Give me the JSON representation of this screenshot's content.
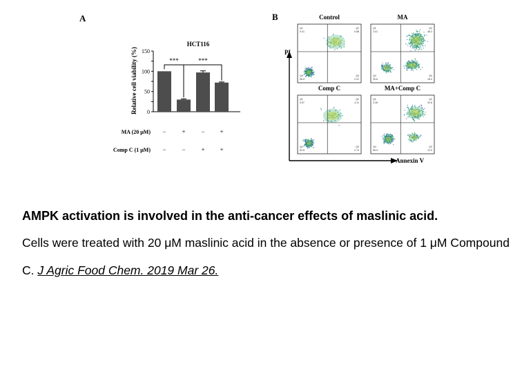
{
  "panel_a": {
    "label": "A",
    "chart_data": {
      "type": "bar",
      "title": "HCT116",
      "ylabel": "Relative cell viability (%)",
      "ylim": [
        0,
        150
      ],
      "yticks": [
        "0",
        "25",
        "50",
        "75",
        "100",
        "125",
        "150"
      ],
      "categories": [
        "MA−/CompC−",
        "MA+/CompC−",
        "MA−/CompC+",
        "MA+/CompC+"
      ],
      "values": [
        100,
        30,
        97,
        72
      ],
      "errors": [
        0,
        1.5,
        4,
        1.5
      ],
      "significance": [
        "***",
        "***"
      ],
      "rows": [
        {
          "label": "MA (20 μM)",
          "signs": [
            "−",
            "+",
            "−",
            "+"
          ]
        },
        {
          "label": "Comp C (1 μM)",
          "signs": [
            "−",
            "−",
            "+",
            "+"
          ]
        }
      ]
    }
  },
  "panel_b": {
    "label": "B",
    "y_axis_label": "PI",
    "x_axis_label": "Annexin V",
    "plots": [
      {
        "title": "Control",
        "q1": "Q1",
        "q1v": "0.41",
        "q2": "Q2",
        "q2v": "0.88",
        "q3": "Q3",
        "q3v": "2.22",
        "q4": "Q4",
        "q4v": "96.5"
      },
      {
        "title": "MA",
        "q1": "Q1",
        "q1v": "3.01",
        "q2": "Q2",
        "q2v": "48.3",
        "q3": "Q3",
        "q3v": "18.0",
        "q4": "Q4",
        "q4v": "30.8"
      },
      {
        "title": "Comp C",
        "q1": "Q1",
        "q1v": "0.57",
        "q2": "Q2",
        "q2v": "4.11",
        "q3": "Q3",
        "q3v": "2.74",
        "q4": "Q4",
        "q4v": "92.8"
      },
      {
        "title": "MA+Comp C",
        "q1": "Q1",
        "q1v": "0.28",
        "q2": "Q2",
        "q2v": "20.8",
        "q3": "Q3",
        "q3v": "12.9",
        "q4": "Q4",
        "q4v": "65.9"
      }
    ]
  },
  "caption": {
    "title": "AMPK activation is involved in the anti-cancer effects of maslinic acid.",
    "body": "Cells were treated with 20 μM maslinic acid in the absence or presence of 1 μM Compound C. ",
    "reference": "J Agric Food Chem. 2019 Mar 26. "
  }
}
